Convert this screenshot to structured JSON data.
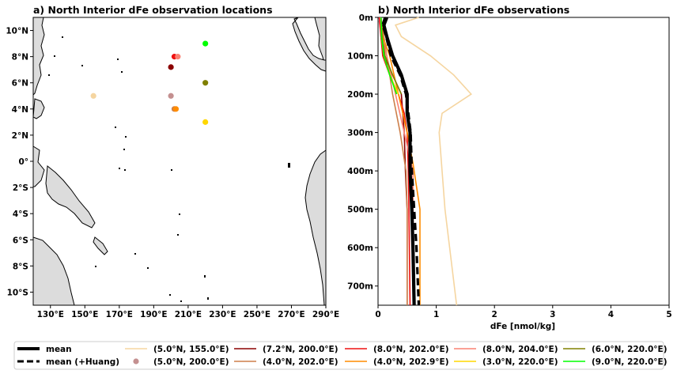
{
  "chart_data": [
    {
      "type": "scatter",
      "title": "a) North Interior dFe observation locations",
      "xlim": [
        120,
        290
      ],
      "ylim": [
        -11,
        11
      ],
      "x_ticks": [
        130,
        150,
        170,
        190,
        210,
        230,
        250,
        270,
        290
      ],
      "x_tick_labels": [
        "130°E",
        "150°E",
        "170°E",
        "190°E",
        "210°E",
        "230°E",
        "250°E",
        "270°E",
        "290°E"
      ],
      "y_ticks": [
        10,
        8,
        6,
        4,
        2,
        0,
        -2,
        -4,
        -6,
        -8,
        -10
      ],
      "y_tick_labels": [
        "10°N",
        "8°N",
        "6°N",
        "4°N",
        "2°N",
        "0°",
        "2°S",
        "4°S",
        "6°S",
        "8°S",
        "10°S"
      ],
      "points": [
        {
          "name": "(5.0°N, 155.0°E)",
          "lon": 155.0,
          "lat": 5.0,
          "color": "#f5d5a0"
        },
        {
          "name": "(5.0°N, 200.0°E)",
          "lon": 200.0,
          "lat": 5.0,
          "color": "#c49090"
        },
        {
          "name": "(7.2°N, 200.0°E)",
          "lon": 200.0,
          "lat": 7.2,
          "color": "#8b0000"
        },
        {
          "name": "(4.0°N, 202.0°E)",
          "lon": 202.0,
          "lat": 4.0,
          "color": "#cd7f4a"
        },
        {
          "name": "(8.0°N, 202.0°E)",
          "lon": 202.0,
          "lat": 8.0,
          "color": "#ee1111"
        },
        {
          "name": "(4.0°N, 202.9°E)",
          "lon": 202.9,
          "lat": 4.0,
          "color": "#ff8c00"
        },
        {
          "name": "(8.0°N, 204.0°E)",
          "lon": 204.0,
          "lat": 8.0,
          "color": "#fa8072"
        },
        {
          "name": "(3.0°N, 220.0°E)",
          "lon": 220.0,
          "lat": 3.0,
          "color": "#ffd700"
        },
        {
          "name": "(6.0°N, 220.0°E)",
          "lon": 220.0,
          "lat": 6.0,
          "color": "#808000"
        },
        {
          "name": "(9.0°N, 220.0°E)",
          "lon": 220.0,
          "lat": 9.0,
          "color": "#00ff00"
        }
      ],
      "land_color": "#dcdcdc"
    },
    {
      "type": "line",
      "title": "b) North Interior dFe observations",
      "xlabel": "dFe [nmol/kg]",
      "xlim": [
        0,
        5
      ],
      "ylim": [
        0,
        750
      ],
      "y_inverted": true,
      "x_ticks": [
        0,
        1,
        2,
        3,
        4,
        5
      ],
      "x_tick_labels": [
        "0",
        "1",
        "2",
        "3",
        "4",
        "5"
      ],
      "y_ticks": [
        0,
        100,
        200,
        300,
        400,
        500,
        600,
        700
      ],
      "y_tick_labels": [
        "0m",
        "100m",
        "200m",
        "300m",
        "400m",
        "500m",
        "600m",
        "700m"
      ],
      "series": [
        {
          "name": "(5.0°N, 155.0°E)",
          "color": "#f5d5a0",
          "depth": [
            0,
            20,
            50,
            100,
            150,
            200,
            250,
            300,
            400,
            500,
            750
          ],
          "dfe": [
            0.7,
            0.3,
            0.4,
            0.9,
            1.3,
            1.6,
            1.1,
            1.05,
            1.1,
            1.15,
            1.35
          ]
        },
        {
          "name": "(5.0°N, 200.0°E)",
          "color": "#c49090",
          "depth": [
            0,
            10,
            30
          ],
          "dfe": [
            0.05,
            0.02,
            0.04
          ]
        },
        {
          "name": "(7.2°N, 200.0°E)",
          "color": "#8b0000",
          "depth": [
            0,
            50,
            100,
            150,
            200,
            300,
            400,
            500,
            750
          ],
          "dfe": [
            0.05,
            0.05,
            0.1,
            0.25,
            0.4,
            0.45,
            0.47,
            0.5,
            0.5
          ]
        },
        {
          "name": "(4.0°N, 202.0°E)",
          "color": "#cd7f4a",
          "depth": [
            0,
            50,
            100,
            200,
            300,
            400,
            500,
            750
          ],
          "dfe": [
            0.05,
            0.1,
            0.15,
            0.25,
            0.38,
            0.48,
            0.5,
            0.5
          ]
        },
        {
          "name": "(8.0°N, 202.0°E)",
          "color": "#ee1111",
          "depth": [
            0,
            50,
            100,
            150,
            200,
            250,
            300,
            400,
            500,
            750
          ],
          "dfe": [
            0.02,
            0.05,
            0.08,
            0.2,
            0.35,
            0.45,
            0.5,
            0.52,
            0.53,
            0.55
          ]
        },
        {
          "name": "(4.0°N, 202.9°E)",
          "color": "#ff8c00",
          "depth": [
            0,
            50,
            100,
            200,
            300,
            380,
            500,
            750
          ],
          "dfe": [
            0.05,
            0.08,
            0.2,
            0.35,
            0.5,
            0.6,
            0.72,
            0.72
          ]
        },
        {
          "name": "(8.0°N, 204.0°E)",
          "color": "#fa8072",
          "depth": [
            0,
            50,
            100,
            200,
            300,
            400,
            500,
            750
          ],
          "dfe": [
            0.04,
            0.06,
            0.15,
            0.3,
            0.45,
            0.6,
            0.6,
            0.62
          ]
        },
        {
          "name": "(3.0°N, 220.0°E)",
          "color": "#ffd700",
          "depth": [
            0,
            50,
            100,
            150,
            200
          ],
          "dfe": [
            0.05,
            0.06,
            0.1,
            0.2,
            0.35
          ]
        },
        {
          "name": "(6.0°N, 220.0°E)",
          "color": "#808000",
          "depth": [
            0,
            50,
            100,
            150,
            200
          ],
          "dfe": [
            0.05,
            0.07,
            0.12,
            0.25,
            0.4
          ]
        },
        {
          "name": "(9.0°N, 220.0°E)",
          "color": "#00ff00",
          "depth": [
            0,
            50,
            100,
            150,
            200
          ],
          "dfe": [
            0.05,
            0.06,
            0.1,
            0.2,
            0.32
          ]
        }
      ],
      "mean": {
        "name": "mean",
        "color": "#000000",
        "depth": [
          0,
          20,
          50,
          100,
          150,
          200,
          250,
          300,
          400,
          500,
          600,
          750
        ],
        "dfe": [
          0.15,
          0.1,
          0.15,
          0.25,
          0.4,
          0.5,
          0.5,
          0.55,
          0.55,
          0.58,
          0.6,
          0.62
        ]
      },
      "mean_huang": {
        "name": "mean (+Huang)",
        "color": "#000000",
        "depth": [
          0,
          20,
          50,
          100,
          150,
          200,
          250,
          300,
          400,
          500,
          600,
          750
        ],
        "dfe": [
          0.12,
          0.08,
          0.14,
          0.22,
          0.38,
          0.48,
          0.52,
          0.56,
          0.58,
          0.62,
          0.66,
          0.7
        ]
      }
    }
  ],
  "legend": [
    {
      "label": "mean",
      "style": "solid-thick",
      "color": "#000000"
    },
    {
      "label": "mean (+Huang)",
      "style": "dashed-thick",
      "color": "#000000"
    },
    {
      "label": "(5.0°N, 155.0°E)",
      "style": "line",
      "color": "#f5d5a0"
    },
    {
      "label": "(5.0°N, 200.0°E)",
      "style": "marker",
      "color": "#c49090"
    },
    {
      "label": "(7.2°N, 200.0°E)",
      "style": "line",
      "color": "#8b0000"
    },
    {
      "label": "(4.0°N, 202.0°E)",
      "style": "line",
      "color": "#cd7f4a"
    },
    {
      "label": "(8.0°N, 202.0°E)",
      "style": "line",
      "color": "#ee1111"
    },
    {
      "label": "(4.0°N, 202.9°E)",
      "style": "line",
      "color": "#ff8c00"
    },
    {
      "label": "(8.0°N, 204.0°E)",
      "style": "line",
      "color": "#fa8072"
    },
    {
      "label": "(3.0°N, 220.0°E)",
      "style": "line",
      "color": "#ffd700"
    },
    {
      "label": "(6.0°N, 220.0°E)",
      "style": "line",
      "color": "#808000"
    },
    {
      "label": "(9.0°N, 220.0°E)",
      "style": "line",
      "color": "#00ff00"
    }
  ]
}
